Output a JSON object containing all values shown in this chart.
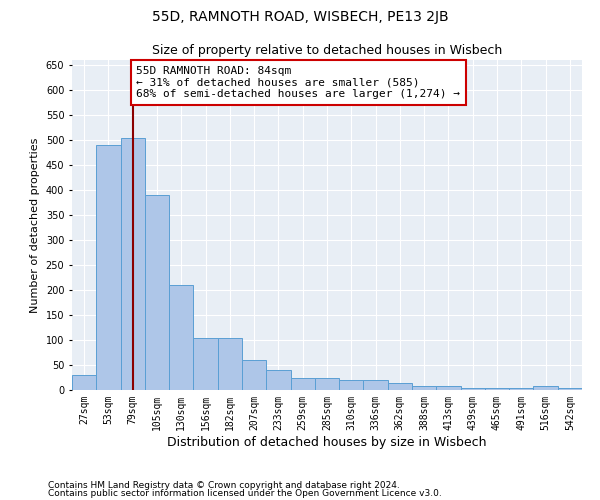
{
  "title": "55D, RAMNOTH ROAD, WISBECH, PE13 2JB",
  "subtitle": "Size of property relative to detached houses in Wisbech",
  "xlabel": "Distribution of detached houses by size in Wisbech",
  "ylabel": "Number of detached properties",
  "categories": [
    "27sqm",
    "53sqm",
    "79sqm",
    "105sqm",
    "130sqm",
    "156sqm",
    "182sqm",
    "207sqm",
    "233sqm",
    "259sqm",
    "285sqm",
    "310sqm",
    "336sqm",
    "362sqm",
    "388sqm",
    "413sqm",
    "439sqm",
    "465sqm",
    "491sqm",
    "516sqm",
    "542sqm"
  ],
  "values": [
    30,
    490,
    505,
    390,
    210,
    105,
    105,
    60,
    40,
    25,
    25,
    20,
    20,
    15,
    8,
    8,
    5,
    5,
    5,
    8,
    5
  ],
  "bar_color": "#aec6e8",
  "bar_edge_color": "#5a9fd4",
  "vline_x": 2,
  "vline_color": "#8b0000",
  "annotation_text": "55D RAMNOTH ROAD: 84sqm\n← 31% of detached houses are smaller (585)\n68% of semi-detached houses are larger (1,274) →",
  "annotation_box_color": "#ffffff",
  "annotation_box_edge_color": "#cc0000",
  "ylim": [
    0,
    660
  ],
  "yticks": [
    0,
    50,
    100,
    150,
    200,
    250,
    300,
    350,
    400,
    450,
    500,
    550,
    600,
    650
  ],
  "background_color": "#e8eef5",
  "footer1": "Contains HM Land Registry data © Crown copyright and database right 2024.",
  "footer2": "Contains public sector information licensed under the Open Government Licence v3.0.",
  "title_fontsize": 10,
  "subtitle_fontsize": 9,
  "annotation_fontsize": 8,
  "ylabel_fontsize": 8,
  "xlabel_fontsize": 9,
  "footer_fontsize": 6.5,
  "tick_fontsize": 7
}
